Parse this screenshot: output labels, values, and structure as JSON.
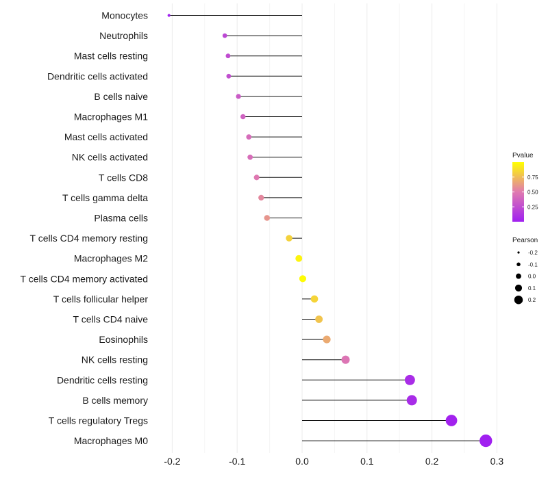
{
  "chart_data": {
    "type": "lollipop",
    "title": "",
    "xlabel": "",
    "ylabel": "",
    "xlim": [
      -0.21,
      0.3
    ],
    "x_ticks": [
      -0.2,
      -0.1,
      0.0,
      0.1,
      0.2,
      0.3
    ],
    "x_tick_labels": [
      "-0.2",
      "-0.1",
      "0.0",
      "0.1",
      "0.2",
      "0.3"
    ],
    "grid": true,
    "baseline": 0,
    "points": [
      {
        "label": "Monocytes",
        "pearson": -0.205,
        "pvalue": 0.01
      },
      {
        "label": "Neutrophils",
        "pearson": -0.119,
        "pvalue": 0.22
      },
      {
        "label": "Mast cells resting",
        "pearson": -0.114,
        "pvalue": 0.25
      },
      {
        "label": "Dendritic cells activated",
        "pearson": -0.113,
        "pvalue": 0.26
      },
      {
        "label": "B cells naive",
        "pearson": -0.098,
        "pvalue": 0.33
      },
      {
        "label": "Macrophages M1",
        "pearson": -0.091,
        "pvalue": 0.37
      },
      {
        "label": "Mast cells activated",
        "pearson": -0.082,
        "pvalue": 0.42
      },
      {
        "label": "NK cells activated",
        "pearson": -0.08,
        "pvalue": 0.43
      },
      {
        "label": "T cells CD8",
        "pearson": -0.07,
        "pvalue": 0.49
      },
      {
        "label": "T cells gamma delta",
        "pearson": -0.063,
        "pvalue": 0.55
      },
      {
        "label": "Plasma cells",
        "pearson": -0.054,
        "pvalue": 0.6
      },
      {
        "label": "T cells CD4 memory resting",
        "pearson": -0.02,
        "pvalue": 0.83
      },
      {
        "label": "Macrophages M2",
        "pearson": -0.005,
        "pvalue": 0.96
      },
      {
        "label": "T cells CD4 memory activated",
        "pearson": 0.001,
        "pvalue": 0.99
      },
      {
        "label": "T cells follicular helper",
        "pearson": 0.019,
        "pvalue": 0.84
      },
      {
        "label": "T cells CD4 naive",
        "pearson": 0.026,
        "pvalue": 0.78
      },
      {
        "label": "Eosinophils",
        "pearson": 0.038,
        "pvalue": 0.68
      },
      {
        "label": "NK cells resting",
        "pearson": 0.067,
        "pvalue": 0.47
      },
      {
        "label": "Dendritic cells resting",
        "pearson": 0.166,
        "pvalue": 0.07
      },
      {
        "label": "B cells memory",
        "pearson": 0.169,
        "pvalue": 0.065
      },
      {
        "label": "T cells regulatory  Tregs ",
        "pearson": 0.23,
        "pvalue": 0.012
      },
      {
        "label": "Macrophages M0",
        "pearson": 0.283,
        "pvalue": 0.002
      }
    ],
    "legend": {
      "color": {
        "title": "Pvalue",
        "ticks": [
          0.25,
          0.5,
          0.75
        ],
        "tick_labels": [
          "0.25",
          "0.50",
          "0.75"
        ],
        "range": [
          0,
          1
        ],
        "colors": {
          "low": "#a020f0",
          "mid": "#e07ab0",
          "high": "#ffff00"
        }
      },
      "size": {
        "title": "Pearson",
        "values": [
          -0.2,
          -0.1,
          0.0,
          0.1,
          0.2
        ],
        "labels": [
          "-0.2",
          "-0.1",
          "0.0",
          "0.1",
          "0.2"
        ]
      }
    },
    "colors": {
      "stem": "#111111",
      "grid_major": "#ebebeb",
      "grid_minor": "#f4f4f4",
      "text": "#1a1a1a"
    }
  }
}
